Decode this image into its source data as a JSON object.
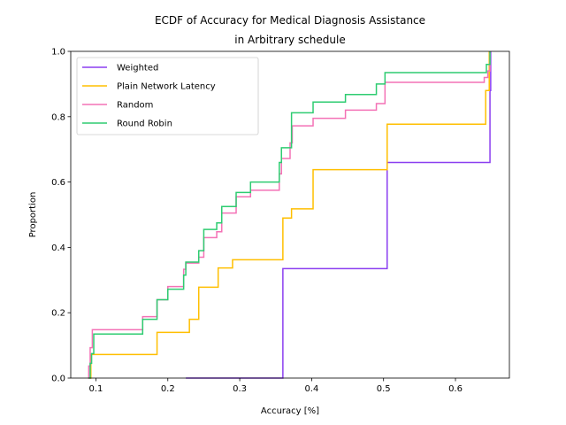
{
  "chart_data": {
    "type": "line",
    "step": true,
    "title": [
      "ECDF of Accuracy for Medical Diagnosis Assistance",
      "in Arbitrary schedule"
    ],
    "xlabel": "Accuracy [%]",
    "ylabel": "Proportion",
    "xlim": [
      0.065,
      0.675
    ],
    "ylim": [
      0,
      1.0
    ],
    "xticks": [
      0.1,
      0.2,
      0.3,
      0.4,
      0.5,
      0.6
    ],
    "xtick_labels": [
      "0.1",
      "0.2",
      "0.3",
      "0.4",
      "0.5",
      "0.6"
    ],
    "yticks": [
      0.0,
      0.2,
      0.4,
      0.6,
      0.8,
      1.0
    ],
    "ytick_labels": [
      "0.0",
      "0.2",
      "0.4",
      "0.6",
      "0.8",
      "1.0"
    ],
    "legend_position": "top-left",
    "grid": false,
    "series": [
      {
        "name": "Weighted",
        "color": "#8b3ff0",
        "points": [
          [
            0.225,
            0.0
          ],
          [
            0.36,
            0.0
          ],
          [
            0.36,
            0.335
          ],
          [
            0.505,
            0.335
          ],
          [
            0.505,
            0.66
          ],
          [
            0.648,
            0.66
          ],
          [
            0.648,
            0.88
          ],
          [
            0.649,
            0.88
          ],
          [
            0.649,
            1.0
          ]
        ]
      },
      {
        "name": "Plain Network Latency",
        "color": "#ffbf00",
        "points": [
          [
            0.091,
            0.0
          ],
          [
            0.093,
            0.0
          ],
          [
            0.093,
            0.072
          ],
          [
            0.185,
            0.072
          ],
          [
            0.185,
            0.14
          ],
          [
            0.23,
            0.14
          ],
          [
            0.23,
            0.18
          ],
          [
            0.243,
            0.18
          ],
          [
            0.243,
            0.278
          ],
          [
            0.27,
            0.278
          ],
          [
            0.27,
            0.337
          ],
          [
            0.29,
            0.337
          ],
          [
            0.29,
            0.362
          ],
          [
            0.36,
            0.362
          ],
          [
            0.36,
            0.49
          ],
          [
            0.372,
            0.49
          ],
          [
            0.372,
            0.518
          ],
          [
            0.402,
            0.518
          ],
          [
            0.402,
            0.638
          ],
          [
            0.505,
            0.638
          ],
          [
            0.505,
            0.777
          ],
          [
            0.642,
            0.777
          ],
          [
            0.642,
            0.88
          ],
          [
            0.647,
            0.88
          ],
          [
            0.647,
            1.0
          ]
        ]
      },
      {
        "name": "Random",
        "color": "#f472b6",
        "points": [
          [
            0.089,
            0.0
          ],
          [
            0.09,
            0.0
          ],
          [
            0.09,
            0.037
          ],
          [
            0.092,
            0.037
          ],
          [
            0.092,
            0.093
          ],
          [
            0.095,
            0.093
          ],
          [
            0.095,
            0.148
          ],
          [
            0.165,
            0.148
          ],
          [
            0.165,
            0.188
          ],
          [
            0.185,
            0.188
          ],
          [
            0.185,
            0.24
          ],
          [
            0.2,
            0.24
          ],
          [
            0.2,
            0.28
          ],
          [
            0.222,
            0.28
          ],
          [
            0.222,
            0.333
          ],
          [
            0.225,
            0.333
          ],
          [
            0.225,
            0.352
          ],
          [
            0.243,
            0.352
          ],
          [
            0.243,
            0.37
          ],
          [
            0.25,
            0.37
          ],
          [
            0.25,
            0.43
          ],
          [
            0.268,
            0.43
          ],
          [
            0.268,
            0.448
          ],
          [
            0.275,
            0.448
          ],
          [
            0.275,
            0.505
          ],
          [
            0.295,
            0.505
          ],
          [
            0.295,
            0.555
          ],
          [
            0.315,
            0.555
          ],
          [
            0.315,
            0.575
          ],
          [
            0.355,
            0.575
          ],
          [
            0.355,
            0.625
          ],
          [
            0.358,
            0.625
          ],
          [
            0.358,
            0.672
          ],
          [
            0.37,
            0.672
          ],
          [
            0.37,
            0.72
          ],
          [
            0.373,
            0.72
          ],
          [
            0.373,
            0.772
          ],
          [
            0.402,
            0.772
          ],
          [
            0.402,
            0.795
          ],
          [
            0.447,
            0.795
          ],
          [
            0.447,
            0.82
          ],
          [
            0.49,
            0.82
          ],
          [
            0.49,
            0.84
          ],
          [
            0.502,
            0.84
          ],
          [
            0.502,
            0.905
          ],
          [
            0.64,
            0.905
          ],
          [
            0.64,
            0.92
          ],
          [
            0.645,
            0.92
          ],
          [
            0.645,
            0.94
          ],
          [
            0.648,
            0.94
          ],
          [
            0.648,
            1.0
          ]
        ]
      },
      {
        "name": "Round Robin",
        "color": "#2ecc71",
        "points": [
          [
            0.09,
            0.0
          ],
          [
            0.092,
            0.0
          ],
          [
            0.092,
            0.045
          ],
          [
            0.094,
            0.045
          ],
          [
            0.094,
            0.075
          ],
          [
            0.097,
            0.075
          ],
          [
            0.097,
            0.135
          ],
          [
            0.165,
            0.135
          ],
          [
            0.165,
            0.18
          ],
          [
            0.185,
            0.18
          ],
          [
            0.185,
            0.24
          ],
          [
            0.2,
            0.24
          ],
          [
            0.2,
            0.272
          ],
          [
            0.222,
            0.272
          ],
          [
            0.222,
            0.315
          ],
          [
            0.225,
            0.315
          ],
          [
            0.225,
            0.355
          ],
          [
            0.243,
            0.355
          ],
          [
            0.243,
            0.39
          ],
          [
            0.25,
            0.39
          ],
          [
            0.25,
            0.455
          ],
          [
            0.268,
            0.455
          ],
          [
            0.268,
            0.475
          ],
          [
            0.275,
            0.475
          ],
          [
            0.275,
            0.525
          ],
          [
            0.295,
            0.525
          ],
          [
            0.295,
            0.568
          ],
          [
            0.315,
            0.568
          ],
          [
            0.315,
            0.6
          ],
          [
            0.355,
            0.6
          ],
          [
            0.355,
            0.66
          ],
          [
            0.358,
            0.66
          ],
          [
            0.358,
            0.705
          ],
          [
            0.372,
            0.705
          ],
          [
            0.372,
            0.812
          ],
          [
            0.402,
            0.812
          ],
          [
            0.402,
            0.845
          ],
          [
            0.447,
            0.845
          ],
          [
            0.447,
            0.868
          ],
          [
            0.49,
            0.868
          ],
          [
            0.49,
            0.9
          ],
          [
            0.502,
            0.9
          ],
          [
            0.502,
            0.935
          ],
          [
            0.643,
            0.935
          ],
          [
            0.643,
            0.96
          ],
          [
            0.648,
            0.96
          ],
          [
            0.648,
            1.0
          ]
        ]
      }
    ]
  }
}
